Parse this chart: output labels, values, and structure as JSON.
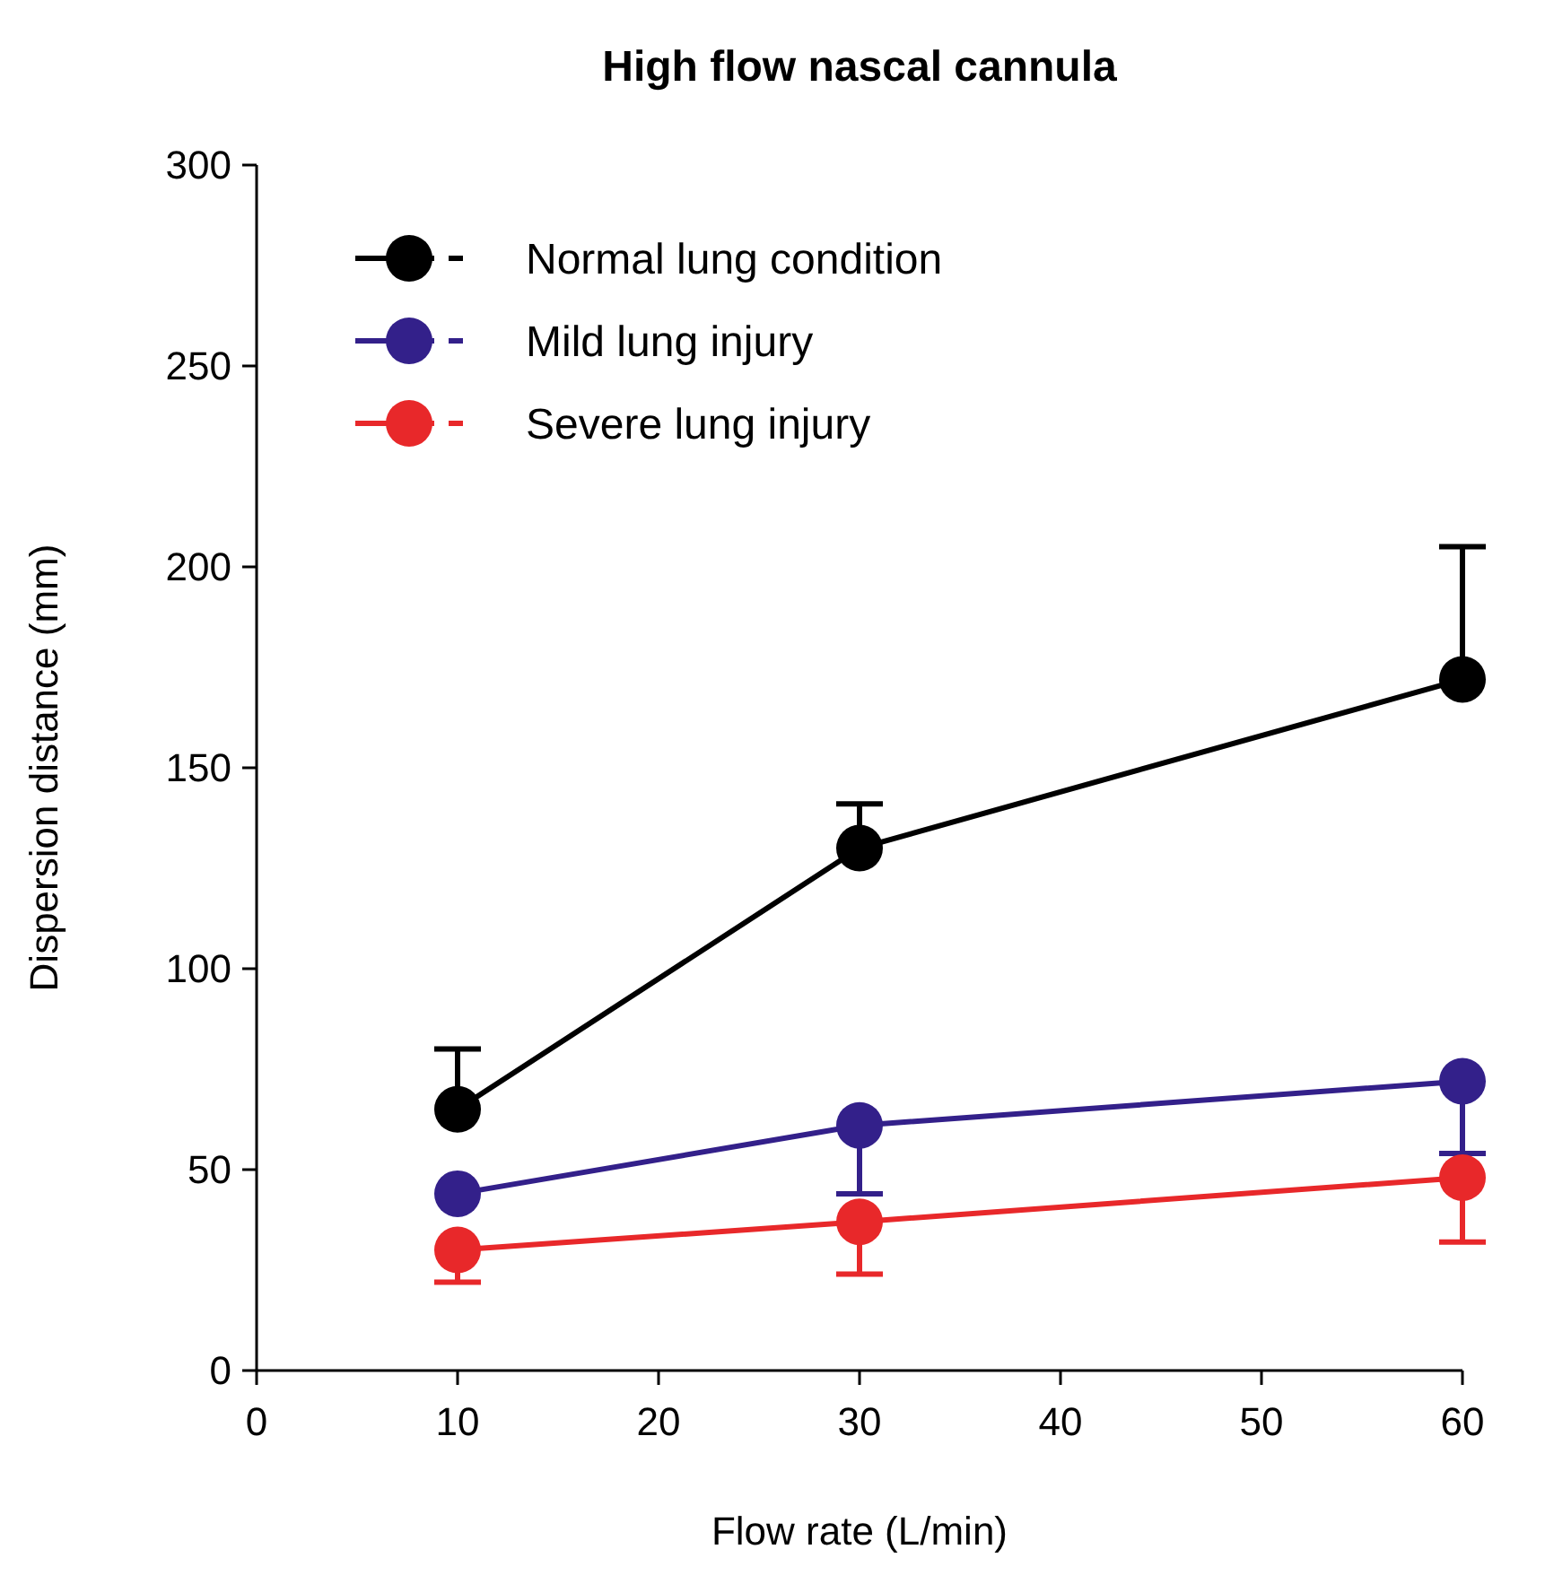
{
  "chart_data": {
    "type": "line",
    "title": "High flow nascal cannula",
    "xlabel": "Flow rate (L/min)",
    "ylabel": "Dispersion distance (mm)",
    "xlim": [
      0,
      60
    ],
    "xticks": [
      0,
      10,
      20,
      30,
      40,
      50,
      60
    ],
    "ylim": [
      0,
      300
    ],
    "yticks": [
      0,
      50,
      100,
      150,
      200,
      250,
      300
    ],
    "marker": "circle",
    "legend": "top left",
    "grid": false,
    "series": [
      {
        "name": "Normal lung condition",
        "color": "#000000",
        "x": [
          10,
          30,
          60
        ],
        "values": [
          65,
          130,
          172
        ],
        "errors": [
          [
            65,
            80
          ],
          [
            130,
            141
          ],
          [
            172,
            205
          ]
        ]
      },
      {
        "name": "Mild lung injury",
        "color": "#33208a",
        "x": [
          10,
          30,
          60
        ],
        "values": [
          44,
          61,
          72
        ],
        "errors": [
          null,
          [
            44,
            61
          ],
          [
            54,
            72
          ]
        ]
      },
      {
        "name": "Severe lung injury",
        "color": "#e8282a",
        "x": [
          10,
          30,
          60
        ],
        "values": [
          30,
          37,
          48
        ],
        "errors": [
          [
            22,
            30
          ],
          [
            24,
            37
          ],
          [
            32,
            48
          ]
        ]
      }
    ]
  }
}
